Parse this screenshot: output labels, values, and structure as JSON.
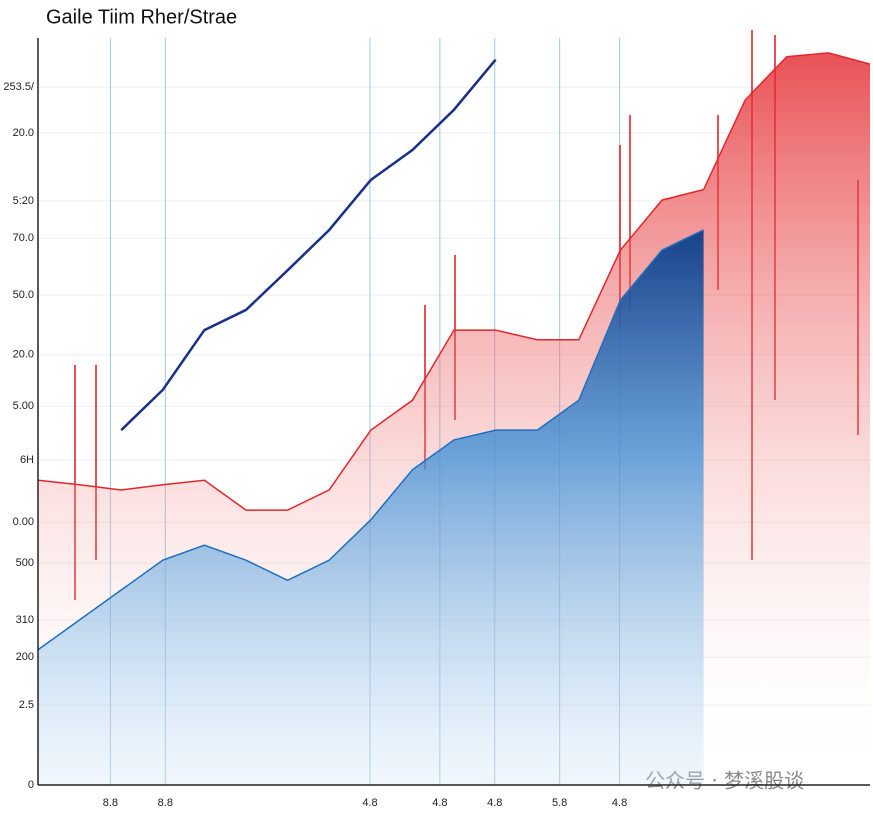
{
  "chart_data": {
    "type": "area",
    "title": "Gaile Tiim Rher/Strae",
    "watermark": "公众号 · 梦溪股谈",
    "x": [
      0,
      5,
      10,
      15,
      20,
      25,
      30,
      35,
      40,
      45,
      50,
      55,
      60,
      65,
      70,
      75,
      80,
      85,
      90,
      95,
      100
    ],
    "series": [
      {
        "color": "#e3262b",
        "values": [
          40.8,
          40.2,
          39.5,
          40.2,
          40.8,
          36.8,
          36.8,
          39.5,
          47.5,
          51.5,
          60.9,
          60.9,
          59.6,
          59.6,
          71.6,
          78.3,
          79.7,
          91.7,
          97.5,
          98,
          96.5
        ]
      },
      {
        "color": "#1f6fc0",
        "values": [
          18.1,
          22.1,
          26.1,
          30.1,
          32.1,
          30.1,
          27.4,
          30.1,
          35.5,
          42.2,
          46.2,
          47.5,
          47.5,
          51.5,
          64.9,
          71.6,
          74.3,
          null,
          null,
          null,
          null
        ]
      },
      {
        "color": "#1a2f8a",
        "values": [
          null,
          null,
          47.5,
          52.9,
          60.9,
          63.6,
          68.9,
          74.3,
          81.0,
          85.0,
          90.4,
          97.1,
          null,
          null,
          null,
          null,
          null,
          null,
          null,
          null,
          null
        ]
      }
    ],
    "xlim": [
      0,
      100
    ],
    "ylim": [
      0,
      100
    ],
    "xticks": [
      {
        "value": 8.7,
        "label": "8.8"
      },
      {
        "value": 15.3,
        "label": "8.8"
      },
      {
        "value": 39.9,
        "label": "4.8"
      },
      {
        "value": 48.3,
        "label": "4.8"
      },
      {
        "value": 54.9,
        "label": "4.8"
      },
      {
        "value": 62.7,
        "label": "5.8"
      },
      {
        "value": 69.9,
        "label": "4.8"
      }
    ],
    "yticks": [
      0,
      {
        "value": 10.7,
        "label": "2.5"
      },
      {
        "value": 17.1,
        "label": "200"
      },
      {
        "value": 22.1,
        "label": "310"
      },
      {
        "value": 29.7,
        "label": "500"
      },
      {
        "value": 35.2,
        "label": "0.00"
      },
      {
        "value": 43.5,
        "label": "6H"
      },
      {
        "value": 50.7,
        "label": "5.00"
      },
      {
        "value": 57.6,
        "label": "20.0"
      },
      {
        "value": 65.6,
        "label": "50.0"
      },
      {
        "value": 73.2,
        "label": "70.0"
      },
      {
        "value": 78.2,
        "label": "5:20"
      },
      {
        "value": 87.3,
        "label": "20.0"
      },
      {
        "value": 93.4,
        "label": "253.5/"
      }
    ],
    "grid": true
  }
}
